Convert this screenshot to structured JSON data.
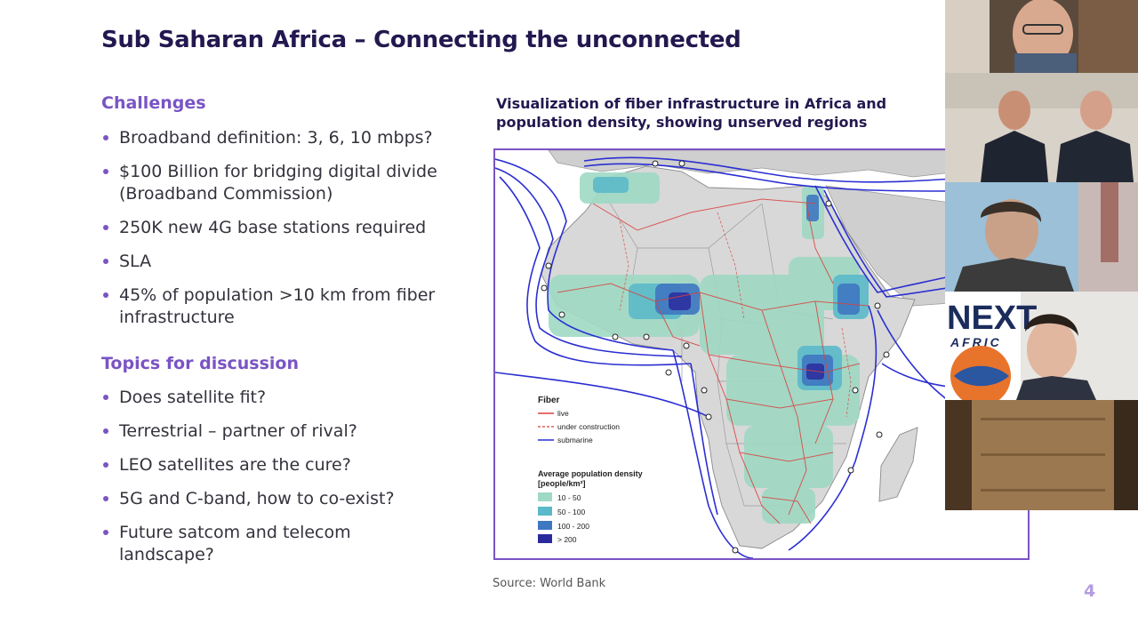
{
  "slide": {
    "title": "Sub Saharan Africa – Connecting the unconnected",
    "page_number": "4",
    "source": "Source: World Bank"
  },
  "challenges": {
    "heading": "Challenges",
    "items": [
      "Broadband definition: 3, 6, 10 mbps?",
      "$100 Billion for bridging digital divide (Broadband Commission)",
      "250K new 4G base stations required",
      "SLA",
      "45% of population >10 km from fiber infrastructure"
    ]
  },
  "topics": {
    "heading": "Topics for discussion",
    "items": [
      "Does satellite fit?",
      "Terrestrial – partner of rival?",
      "LEO satellites are the cure?",
      "5G and C-band, how to co-exist?",
      "Future satcom and telecom landscape?"
    ]
  },
  "map": {
    "caption": "Visualization of fiber infrastructure in Africa and population density, showing unserved regions",
    "legend": {
      "fiber_title": "Fiber",
      "fiber_items": [
        "live",
        "under construction",
        "submarine"
      ],
      "density_title_line1": "Average population density",
      "density_title_line2": "[people/km²]",
      "density_items": [
        "10 - 50",
        "50 - 100",
        "100 - 200",
        "> 200"
      ]
    }
  },
  "video_tiles": {
    "logo_text": "NEXT",
    "logo_subtext": "AFRIC"
  },
  "colors": {
    "title": "#23184f",
    "accent": "#7a54c4",
    "fiber_live": "#d9423f",
    "submarine": "#2b2fd1",
    "density_1": "#9fd9c4",
    "density_2": "#5bb9c9",
    "density_3": "#3f77c0",
    "density_4": "#2a2a9c"
  }
}
